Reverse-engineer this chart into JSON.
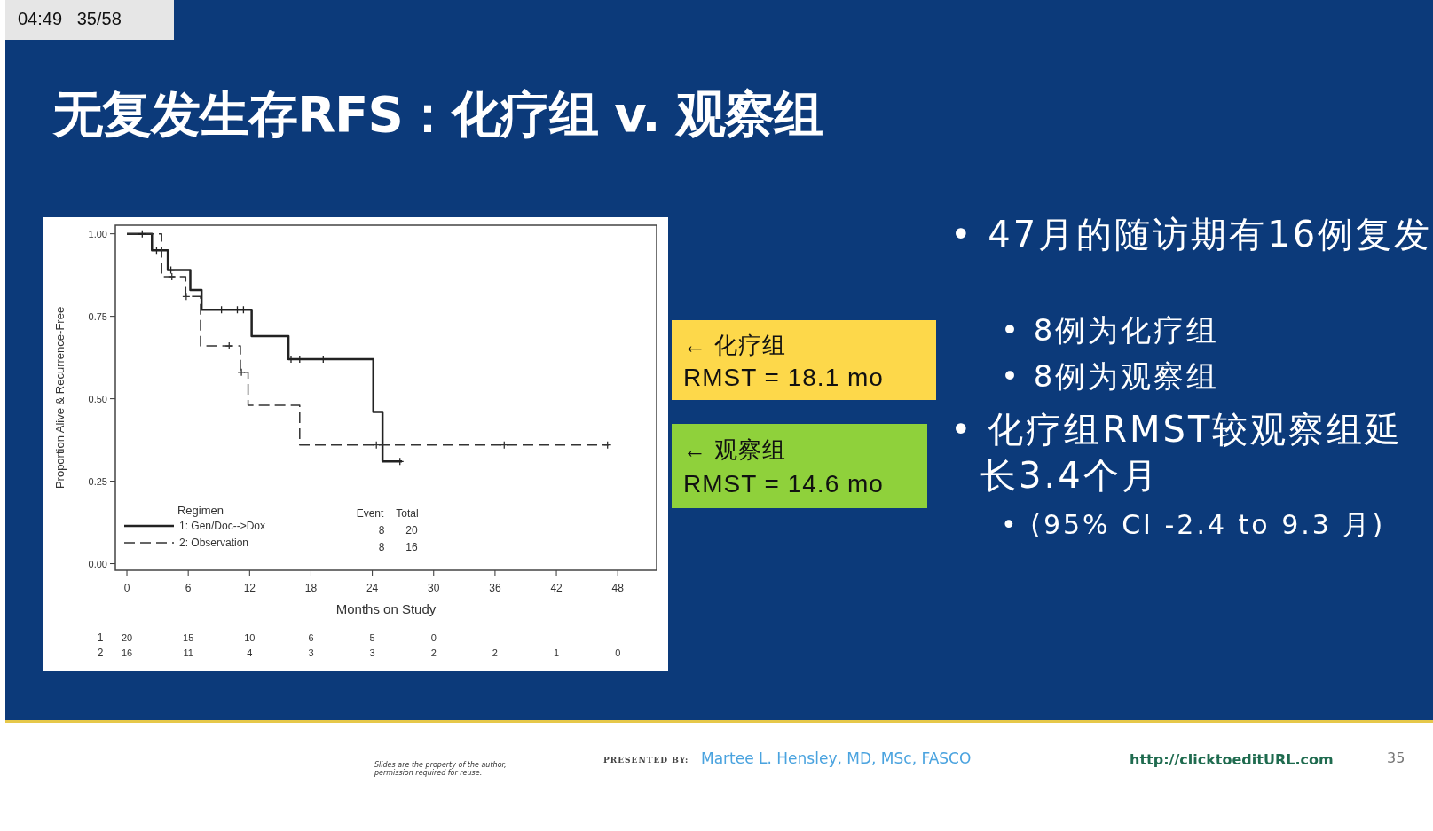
{
  "chart_data": {
    "type": "step",
    "title": "无复发生存RFS：化疗组 v. 观察组",
    "xlabel": "Months on Study",
    "ylabel": "Proportion Alive & Recurrence-Free",
    "legend_title": "Regimen",
    "legend": "bottom left",
    "xlim": [
      -1.13,
      51.8
    ],
    "ylim": [
      -0.02,
      1.026
    ],
    "xticks": [
      0,
      6,
      12,
      18,
      24,
      30,
      36,
      42,
      48
    ],
    "yticks": [
      {
        "value": 0,
        "label": "0.00"
      },
      {
        "value": 0.25,
        "label": "0.25"
      },
      {
        "value": 0.5,
        "label": "0.50"
      },
      {
        "value": 0.75,
        "label": "0.75"
      },
      {
        "value": 1,
        "label": "1.00"
      }
    ],
    "series": [
      {
        "name": "1: Gen/Doc-->Dox",
        "color": "#222222",
        "line_style": "solid",
        "x": [
          0,
          2.45,
          4.0,
          6.2,
          7.3,
          12.2,
          15.8,
          24.1,
          25.0,
          26.9
        ],
        "values": [
          1,
          0.95,
          0.89,
          0.83,
          0.77,
          0.69,
          0.62,
          0.46,
          0.31,
          0.31
        ]
      },
      {
        "name": "2: Observation",
        "color": "#333333",
        "line_style": "dashed",
        "x": [
          0,
          3.4,
          5.75,
          7.2,
          11.1,
          11.85,
          16.9,
          47.1
        ],
        "values": [
          1,
          0.87,
          0.81,
          0.66,
          0.58,
          0.48,
          0.36,
          0.36
        ]
      },
      {
        "type": "scatter",
        "marker": "cross",
        "color": "#222222",
        "x": [
          1.5,
          2.9,
          4.3,
          9.25,
          10.8,
          11.4,
          16.05,
          16.9,
          19.2,
          26.7
        ],
        "values": [
          1,
          0.95,
          0.89,
          0.77,
          0.77,
          0.77,
          0.62,
          0.62,
          0.62,
          0.31
        ]
      },
      {
        "type": "scatter",
        "marker": "cross",
        "color": "#333333",
        "x": [
          4.4,
          5.8,
          10.0,
          11.2,
          24.4,
          36.9,
          47.0
        ],
        "values": [
          0.87,
          0.81,
          0.66,
          0.58,
          0.36,
          0.36,
          0.36
        ]
      }
    ],
    "annotations": [
      "04:49   35/58",
      "← 化疗组",
      "RMST = 18.1 mo",
      "← 观察组",
      "RMST = 14.6 mo",
      "• 47月的随访期有16例复发",
      "• 8例为化疗组",
      "• 8例为观察组",
      "• 化疗组RMST较观察组延长3.4个月",
      "• (95% CI -2.4 to 9.3 月)",
      "Event",
      "Total",
      "8",
      "20",
      "8",
      "16",
      "1",
      "20",
      "15",
      "10",
      "6",
      "5",
      "0",
      "2",
      "16",
      "11",
      "4",
      "3",
      "3",
      "2",
      "2",
      "1",
      "0",
      "Slides are the property of the author, permission required for reuse.",
      "PRESENTED BY:",
      "Martee L. Hensley, MD, MSc, FASCO",
      "http://clicktoeditURL.com",
      "35"
    ]
  }
}
